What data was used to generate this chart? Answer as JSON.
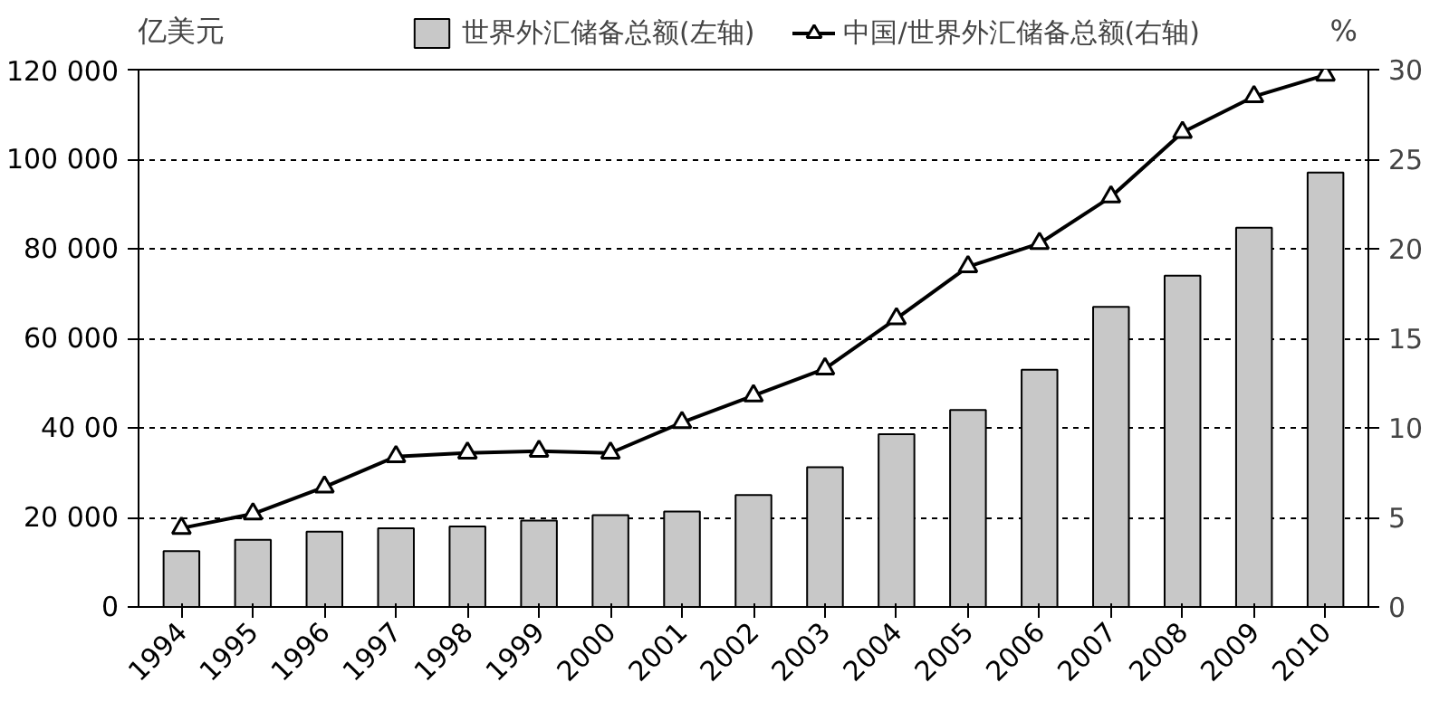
{
  "chart_data": {
    "type": "bar",
    "ylabel": "亿美元",
    "y2label": "%",
    "categories": [
      "1994",
      "1995",
      "1996",
      "1997",
      "1998",
      "1999",
      "2000",
      "2001",
      "2002",
      "2003",
      "2004",
      "2005",
      "2006",
      "2007",
      "2008",
      "2009",
      "2010"
    ],
    "series": [
      {
        "name": "世界外汇储备总额(左轴)",
        "color": "#c8c8c8",
        "values": [
          12500,
          15000,
          16800,
          17600,
          18000,
          19300,
          20500,
          21300,
          25000,
          31200,
          38600,
          44000,
          53000,
          67000,
          74000,
          84700,
          97000
        ]
      },
      {
        "name": "中国/世界外汇储备总额(右轴)",
        "type": "line",
        "axis": "y2",
        "color": "#000000",
        "marker": "triangle",
        "values": [
          4.4,
          5.2,
          6.7,
          8.4,
          8.6,
          8.7,
          8.6,
          10.3,
          11.8,
          13.3,
          16.1,
          19.0,
          20.3,
          22.9,
          26.5,
          28.5,
          29.7
        ]
      }
    ],
    "ylim": [
      0,
      120000
    ],
    "yticks": [
      0,
      {
        "value": 20000,
        "label": "20 000"
      },
      {
        "value": 40000,
        "label": "40 00"
      },
      {
        "value": 60000,
        "label": "60 000"
      },
      {
        "value": 80000,
        "label": "80 000"
      },
      {
        "value": 100000,
        "label": "100 000"
      },
      {
        "value": 120000,
        "label": "120 000"
      }
    ],
    "y2lim": [
      0,
      30
    ],
    "y2ticks": [
      0,
      5,
      10,
      15,
      20,
      25,
      30
    ],
    "grid": "y",
    "legend": "top"
  }
}
